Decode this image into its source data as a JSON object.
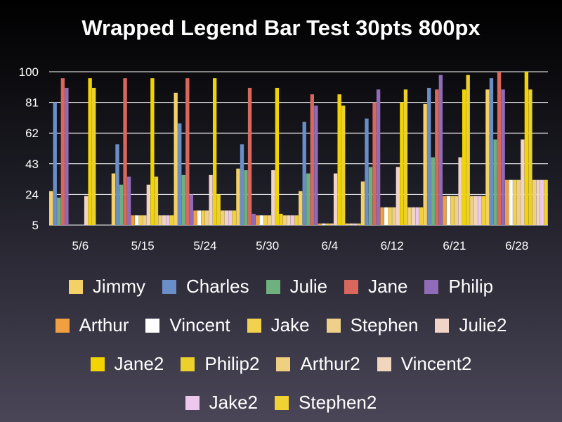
{
  "chart_data": {
    "type": "bar",
    "title": "Wrapped Legend Bar Test 30pts 800px",
    "xlabel": "",
    "ylabel": "",
    "ylim": [
      5,
      100
    ],
    "yticks": [
      "5",
      "24",
      "43",
      "62",
      "81",
      "100"
    ],
    "categories": [
      "5/6",
      "5/15",
      "5/24",
      "5/30",
      "6/4",
      "6/12",
      "6/21",
      "6/28"
    ],
    "grid": true,
    "legend_position": "bottom",
    "series": [
      {
        "name": "Jimmy",
        "color": "#f4d166",
        "values": [
          26,
          37,
          87,
          40,
          26,
          32,
          80,
          89
        ]
      },
      {
        "name": "Charles",
        "color": "#6a8ec8",
        "values": [
          81,
          55,
          68,
          55,
          69,
          71,
          90,
          96
        ]
      },
      {
        "name": "Julie",
        "color": "#6fb07f",
        "values": [
          22,
          30,
          36,
          39,
          37,
          41,
          47,
          58
        ]
      },
      {
        "name": "Jane",
        "color": "#d9675c",
        "values": [
          96,
          96,
          96,
          90,
          86,
          81,
          89,
          100
        ]
      },
      {
        "name": "Philip",
        "color": "#8f6bb8",
        "values": [
          90,
          35,
          24,
          12,
          79,
          89,
          98,
          89
        ]
      },
      {
        "name": "Arthur",
        "color": "#f0a040",
        "values": [
          5,
          11,
          14,
          11,
          6,
          16,
          23,
          33
        ]
      },
      {
        "name": "Vincent",
        "color": "#ffffff",
        "values": [
          5,
          11,
          14,
          11,
          6,
          16,
          23,
          33
        ]
      },
      {
        "name": "Jake",
        "color": "#f2d14f",
        "values": [
          5,
          11,
          14,
          11,
          6,
          16,
          23,
          33
        ]
      },
      {
        "name": "Stephen",
        "color": "#efd08a",
        "values": [
          5,
          11,
          14,
          11,
          6,
          16,
          23,
          33
        ]
      },
      {
        "name": "Julie2",
        "color": "#f1d4c8",
        "values": [
          23,
          30,
          36,
          39,
          37,
          41,
          47,
          58
        ]
      },
      {
        "name": "Jane2",
        "color": "#f2d500",
        "values": [
          96,
          96,
          96,
          90,
          86,
          81,
          89,
          100
        ]
      },
      {
        "name": "Philip2",
        "color": "#ecd02c",
        "values": [
          90,
          35,
          24,
          12,
          79,
          89,
          98,
          89
        ]
      },
      {
        "name": "Arthur2",
        "color": "#efcf80",
        "values": [
          5,
          11,
          14,
          11,
          6,
          16,
          23,
          33
        ]
      },
      {
        "name": "Vincent2",
        "color": "#f0d6bd",
        "values": [
          5,
          11,
          14,
          11,
          6,
          16,
          23,
          33
        ]
      },
      {
        "name": "Jake2",
        "color": "#ecc8ec",
        "values": [
          5,
          11,
          14,
          11,
          6,
          16,
          23,
          33
        ]
      },
      {
        "name": "Stephen2",
        "color": "#f0d232",
        "values": [
          5,
          11,
          14,
          11,
          6,
          16,
          23,
          33
        ]
      }
    ]
  },
  "legend_rows": [
    [
      "Jimmy",
      "Charles",
      "Julie",
      "Jane",
      "Philip"
    ],
    [
      "Arthur",
      "Vincent",
      "Jake",
      "Stephen",
      "Julie2"
    ],
    [
      "Jane2",
      "Philip2",
      "Arthur2",
      "Vincent2"
    ],
    [
      "Jake2",
      "Stephen2"
    ]
  ]
}
